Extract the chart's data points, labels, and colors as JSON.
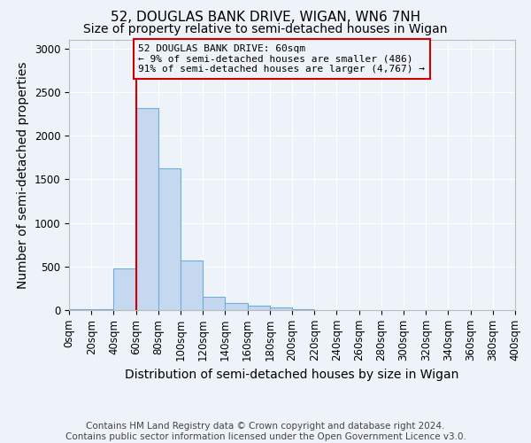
{
  "title": "52, DOUGLAS BANK DRIVE, WIGAN, WN6 7NH",
  "subtitle": "Size of property relative to semi-detached houses in Wigan",
  "xlabel": "Distribution of semi-detached houses by size in Wigan",
  "ylabel": "Number of semi-detached properties",
  "footnote": "Contains HM Land Registry data © Crown copyright and database right 2024.\nContains public sector information licensed under the Open Government Licence v3.0.",
  "bin_edges": [
    0,
    20,
    40,
    60,
    80,
    100,
    120,
    140,
    160,
    180,
    200,
    220,
    240,
    260,
    280,
    300,
    320,
    340,
    360,
    380,
    400
  ],
  "bar_heights": [
    10,
    10,
    480,
    2320,
    1630,
    570,
    150,
    85,
    50,
    30,
    10,
    0,
    0,
    0,
    0,
    0,
    0,
    0,
    0,
    0
  ],
  "bar_color": "#c5d8f0",
  "bar_edge_color": "#6baed6",
  "property_size": 60,
  "red_line_color": "#cc0000",
  "annotation_text": "52 DOUGLAS BANK DRIVE: 60sqm\n← 9% of semi-detached houses are smaller (486)\n91% of semi-detached houses are larger (4,767) →",
  "ylim": [
    0,
    3100
  ],
  "yticks": [
    0,
    500,
    1000,
    1500,
    2000,
    2500,
    3000
  ],
  "background_color": "#eef2f9",
  "grid_color": "#ffffff",
  "title_fontsize": 11,
  "subtitle_fontsize": 10,
  "axis_label_fontsize": 10,
  "tick_fontsize": 8.5,
  "footnote_fontsize": 7.5,
  "footnote_color": "#444444"
}
